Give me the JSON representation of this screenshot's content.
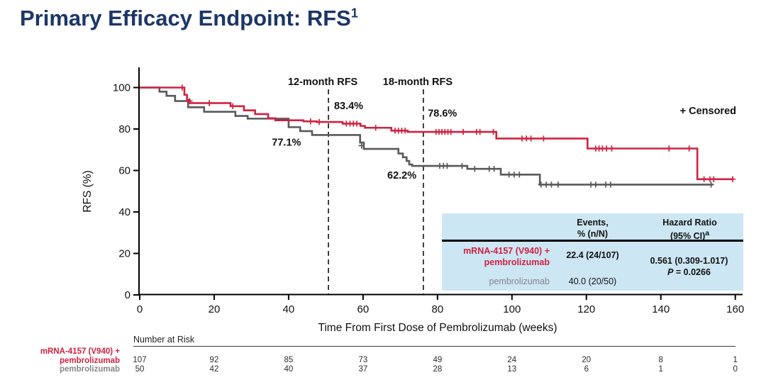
{
  "title": {
    "text": "Primary Efficacy Endpoint: RFS",
    "superscript": "1"
  },
  "chart_data": {
    "type": "line",
    "subtype": "kaplan-meier-step",
    "title": "",
    "xlabel": "Time From First Dose of Pembrolizumab (weeks)",
    "ylabel": "RFS (%)",
    "xlim": [
      0,
      160
    ],
    "ylim": [
      0,
      100
    ],
    "xticks": [
      0,
      20,
      40,
      60,
      80,
      100,
      120,
      140,
      160
    ],
    "yticks": [
      0,
      20,
      40,
      60,
      80,
      100
    ],
    "grid": false,
    "legend_position": "top-right",
    "censored_legend": "+ Censored",
    "milestones": [
      {
        "x": 50.7,
        "label": "12-month RFS"
      },
      {
        "x": 76.2,
        "label": "18-month RFS"
      }
    ],
    "annotations": [
      {
        "text": "83.4%",
        "x": 52.2,
        "y": 89.5,
        "series": "mRNA-4157 (V940) + pembrolizumab",
        "milestone": "12-month RFS"
      },
      {
        "text": "78.6%",
        "x": 77.4,
        "y": 86.0,
        "series": "mRNA-4157 (V940) + pembrolizumab",
        "milestone": "18-month RFS"
      },
      {
        "text": "77.1%",
        "x": 35.5,
        "y": 72.0,
        "series": "pembrolizumab",
        "milestone": "12-month RFS"
      },
      {
        "text": "62.2%",
        "x": 66.5,
        "y": 56.0,
        "series": "pembrolizumab",
        "milestone": "18-month RFS"
      }
    ],
    "series": [
      {
        "name": "pembrolizumab",
        "color": "#58595B",
        "steps": [
          [
            0,
            100
          ],
          [
            5.3,
            98
          ],
          [
            7.2,
            96
          ],
          [
            9.5,
            93.5
          ],
          [
            13,
            90.5
          ],
          [
            17.3,
            88.3
          ],
          [
            25.7,
            86.3
          ],
          [
            29,
            85
          ],
          [
            40,
            80.9
          ],
          [
            43.1,
            79
          ],
          [
            46.3,
            77.1
          ],
          [
            59.2,
            73.5
          ],
          [
            60.2,
            70.4
          ],
          [
            69.5,
            68.2
          ],
          [
            70.7,
            66.4
          ],
          [
            71.7,
            64.6
          ],
          [
            72.4,
            62.9
          ],
          [
            73.2,
            62.2
          ],
          [
            88,
            60.8
          ],
          [
            97,
            58
          ],
          [
            107.5,
            53.2
          ],
          [
            153.9,
            53.2
          ]
        ],
        "censors": [
          [
            59.6,
            72
          ],
          [
            80.6,
            62.2
          ],
          [
            81.6,
            62.2
          ],
          [
            82.6,
            62.2
          ],
          [
            86.6,
            62.2
          ],
          [
            90,
            60.8
          ],
          [
            93.9,
            60.8
          ],
          [
            95.2,
            60.8
          ],
          [
            99.2,
            58
          ],
          [
            100.6,
            58
          ],
          [
            102,
            58
          ],
          [
            107.8,
            53.2
          ],
          [
            109.2,
            53.2
          ],
          [
            110.6,
            53.2
          ],
          [
            112.4,
            53.2
          ],
          [
            121.2,
            53.2
          ],
          [
            122.5,
            53.2
          ],
          [
            125.2,
            53.2
          ],
          [
            126.5,
            53.2
          ],
          [
            153.5,
            53.2
          ]
        ]
      },
      {
        "name": "mRNA-4157 (V940) + pembrolizumab",
        "color": "#D0213F",
        "steps": [
          [
            0,
            100
          ],
          [
            12,
            96.5
          ],
          [
            12.7,
            94
          ],
          [
            13.4,
            92.5
          ],
          [
            24.4,
            91
          ],
          [
            28,
            89
          ],
          [
            31,
            87.2
          ],
          [
            34.5,
            85.2
          ],
          [
            36.4,
            84.2
          ],
          [
            44,
            83.7
          ],
          [
            47.5,
            83.4
          ],
          [
            54.5,
            82.6
          ],
          [
            59.3,
            81.5
          ],
          [
            60.5,
            80.6
          ],
          [
            67.6,
            79.2
          ],
          [
            72,
            78.6
          ],
          [
            95.8,
            75.4
          ],
          [
            120.3,
            70.6
          ],
          [
            149.8,
            55.8
          ],
          [
            159.3,
            55.8
          ]
        ],
        "censors": [
          [
            11.4,
            100
          ],
          [
            13.4,
            93.5
          ],
          [
            18.7,
            92.5
          ],
          [
            25,
            91
          ],
          [
            45.9,
            83.7
          ],
          [
            48.2,
            83.4
          ],
          [
            55.5,
            82.6
          ],
          [
            56.5,
            82.6
          ],
          [
            57.4,
            82.6
          ],
          [
            58.3,
            82.6
          ],
          [
            63.4,
            80.6
          ],
          [
            68.6,
            79.2
          ],
          [
            69.5,
            79.2
          ],
          [
            70.4,
            79.2
          ],
          [
            71.3,
            79.2
          ],
          [
            79.6,
            78.6
          ],
          [
            80.4,
            78.6
          ],
          [
            81.2,
            78.6
          ],
          [
            82,
            78.6
          ],
          [
            82.8,
            78.6
          ],
          [
            83.6,
            78.6
          ],
          [
            86.9,
            78.6
          ],
          [
            90.5,
            78.6
          ],
          [
            91.4,
            78.6
          ],
          [
            95,
            78.6
          ],
          [
            102.7,
            75.4
          ],
          [
            103.9,
            75.4
          ],
          [
            105.1,
            75.4
          ],
          [
            108.5,
            75.4
          ],
          [
            122.5,
            70.6
          ],
          [
            123.4,
            70.6
          ],
          [
            124.3,
            70.6
          ],
          [
            125.4,
            70.6
          ],
          [
            126.8,
            70.6
          ],
          [
            142.2,
            70.6
          ],
          [
            147.6,
            70.6
          ],
          [
            151.6,
            55.8
          ],
          [
            153.2,
            55.8
          ],
          [
            154.2,
            55.8
          ],
          [
            159.3,
            55.8
          ]
        ]
      }
    ]
  },
  "inset_table": {
    "col_headers": [
      {
        "line1": "Events,",
        "line2": "% (n/N)",
        "superscript": ""
      },
      {
        "line1": "Hazard Ratio",
        "line2": "(95% CI)",
        "superscript": "a"
      }
    ],
    "rows": [
      {
        "label_line1": "mRNA-4157 (V940) +",
        "label_line2": "pembrolizumab",
        "events": "22.4 (24/107)"
      },
      {
        "label_line1": "",
        "label_line2": "pembrolizumab",
        "events": "40.0 (20/50)"
      }
    ],
    "hazard_ratio": "0.561 (0.309-1.017)",
    "p_label": "P",
    "p_value": " = 0.0266"
  },
  "risk_table": {
    "heading": "Number at Risk",
    "timepoints": [
      0,
      20,
      40,
      60,
      80,
      100,
      120,
      140,
      160
    ],
    "groups": [
      {
        "label_line1": "mRNA-4157 (V940) +",
        "label_line2": "pembrolizumab",
        "color": "#D0213F",
        "values": [
          "107",
          "92",
          "85",
          "73",
          "49",
          "24",
          "20",
          "8",
          "1"
        ]
      },
      {
        "label_line1": "",
        "label_line2": "pembrolizumab",
        "color": "#85878A",
        "values": [
          "50",
          "42",
          "40",
          "37",
          "28",
          "13",
          "6",
          "1",
          "0"
        ]
      }
    ]
  },
  "colors": {
    "accent_red": "#D0213F",
    "curve_gray": "#58595B",
    "title_navy": "#1C3667",
    "inset_background": "#CDE6F4",
    "text_black": "#111111",
    "muted_gray": "#85878A"
  }
}
